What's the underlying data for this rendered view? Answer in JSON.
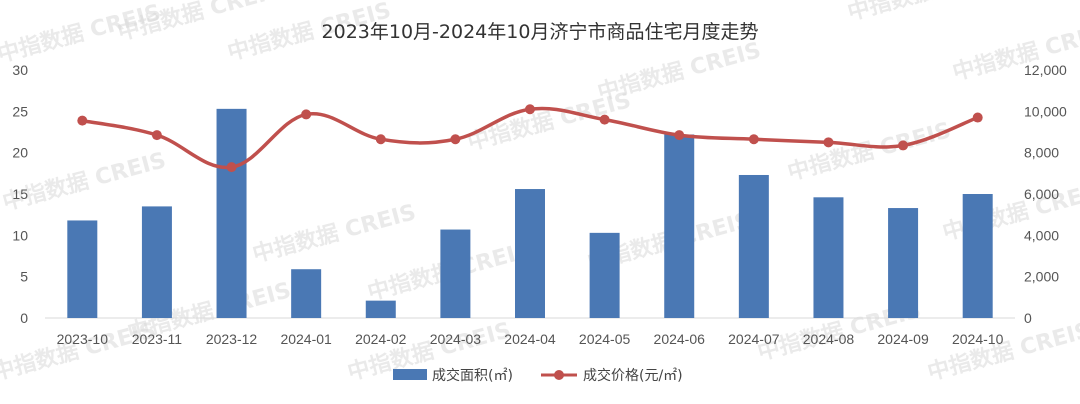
{
  "watermark": "中指数据 CREIS",
  "chart_data": {
    "type": "bar",
    "title": "2023年10月-2024年10月济宁市商品住宅月度走势",
    "categories": [
      "2023-10",
      "2023-11",
      "2023-12",
      "2024-01",
      "2024-02",
      "2024-03",
      "2024-04",
      "2024-05",
      "2024-06",
      "2024-07",
      "2024-08",
      "2024-09",
      "2024-10"
    ],
    "series": [
      {
        "name": "成交面积(㎡)",
        "type": "bar",
        "axis": "left",
        "color": "#4a78b4",
        "values": [
          11.8,
          13.5,
          25.3,
          5.9,
          2.1,
          10.7,
          15.6,
          10.3,
          22.2,
          17.3,
          14.6,
          13.3,
          15.0
        ]
      },
      {
        "name": "成交价格(元/㎡)",
        "type": "line",
        "axis": "right",
        "color": "#c0504d",
        "values": [
          9550,
          8850,
          7300,
          9850,
          8650,
          8650,
          10100,
          9600,
          8850,
          8650,
          8500,
          8350,
          9700
        ]
      }
    ],
    "y_left": {
      "min": 0,
      "max": 30,
      "ticks": [
        "0",
        "5",
        "10",
        "15",
        "20",
        "25",
        "30"
      ]
    },
    "y_right": {
      "min": 0,
      "max": 12000,
      "ticks": [
        "0",
        "2,000",
        "4,000",
        "6,000",
        "8,000",
        "10,000",
        "12,000"
      ]
    },
    "grid": false,
    "legend_position": "bottom"
  }
}
